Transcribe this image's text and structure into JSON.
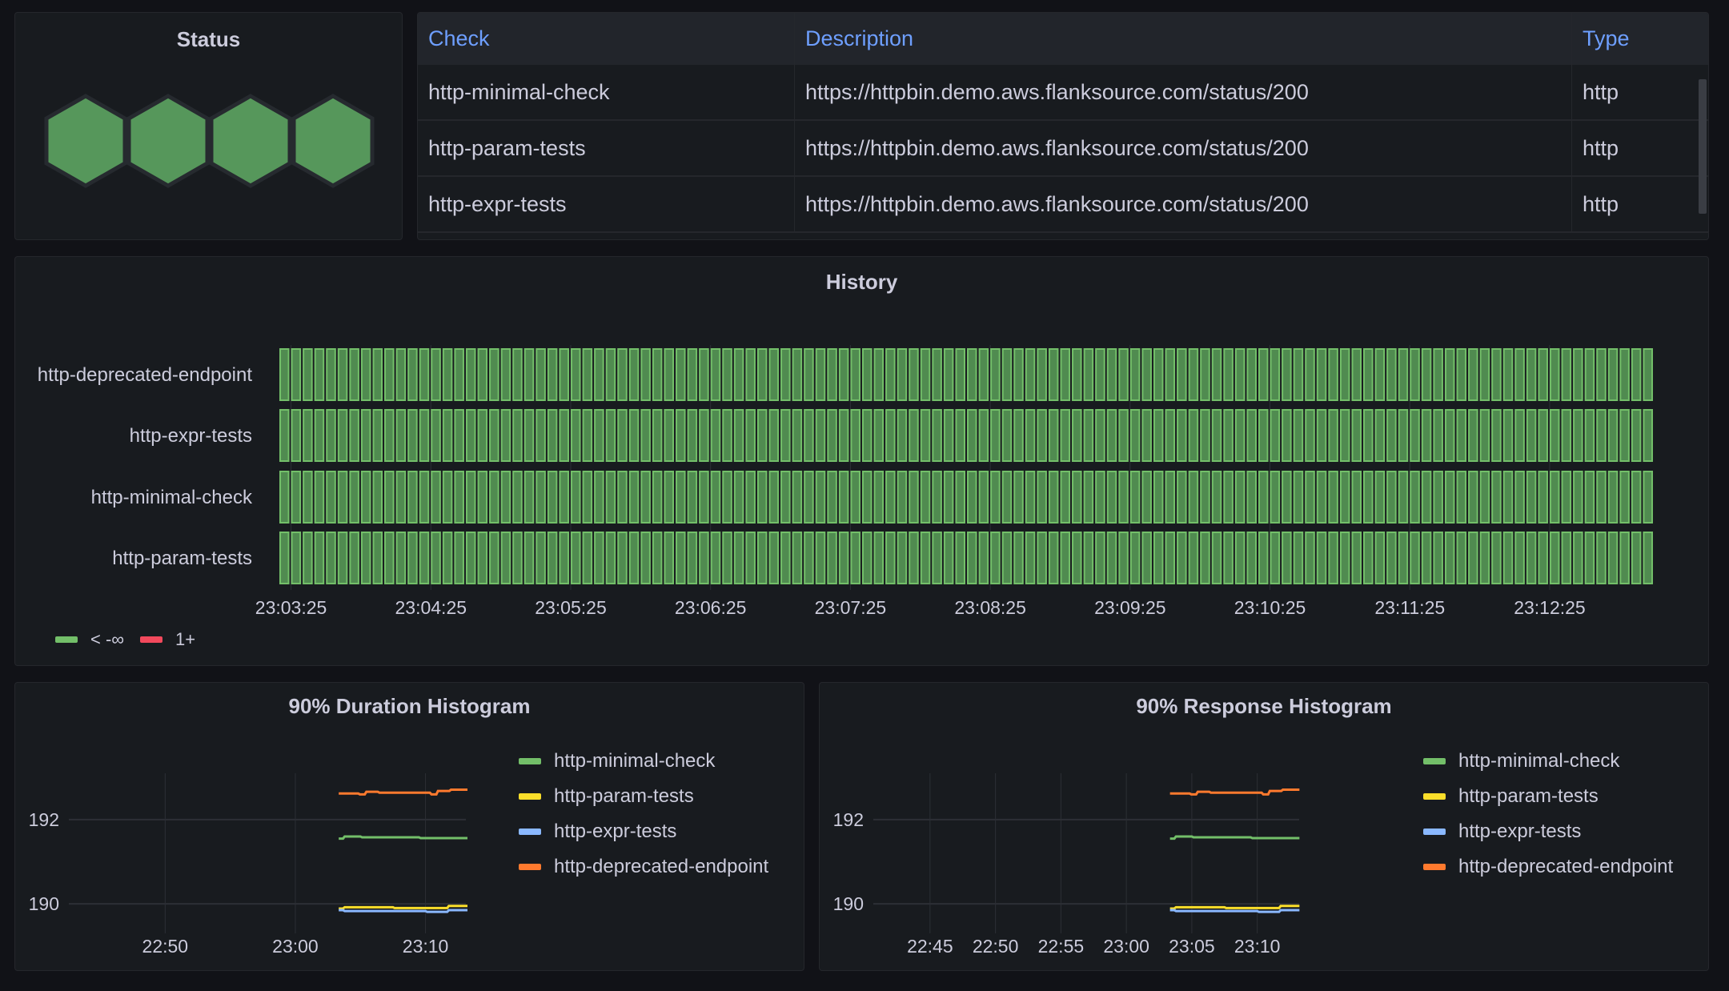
{
  "status": {
    "title": "Status",
    "hexagons": [
      {
        "state": "ok",
        "color": "#56975b"
      },
      {
        "state": "ok",
        "color": "#56975b"
      },
      {
        "state": "ok",
        "color": "#56975b"
      },
      {
        "state": "ok",
        "color": "#56975b"
      }
    ]
  },
  "table": {
    "columns": [
      "Check",
      "Description",
      "Type"
    ],
    "rows": [
      [
        "http-minimal-check",
        "https://httpbin.demo.aws.flanksource.com/status/200",
        "http"
      ],
      [
        "http-param-tests",
        "https://httpbin.demo.aws.flanksource.com/status/200",
        "http"
      ],
      [
        "http-expr-tests",
        "https://httpbin.demo.aws.flanksource.com/status/200",
        "http"
      ]
    ]
  },
  "history": {
    "title": "History",
    "rows": [
      "http-deprecated-endpoint",
      "http-expr-tests",
      "http-minimal-check",
      "http-param-tests"
    ],
    "start": "23:03:20",
    "interval_seconds": 5,
    "buckets_per_row": 118,
    "ticks": [
      "23:03:25",
      "23:04:25",
      "23:05:25",
      "23:06:25",
      "23:07:25",
      "23:08:25",
      "23:09:25",
      "23:10:25",
      "23:11:25",
      "23:12:25"
    ],
    "legend": [
      {
        "label": "< -∞",
        "color": "#73bf69"
      },
      {
        "label": "1+",
        "color": "#f2495c"
      }
    ],
    "ok_fill": "#508b50",
    "ok_stroke": "#73bf69"
  },
  "chart_data": [
    {
      "type": "line",
      "title": "90% Duration Histogram",
      "xlim": [
        "22:42:36",
        "23:13:06"
      ],
      "ylim": [
        189.3,
        193.1
      ],
      "xticks": [
        "22:50",
        "23:00",
        "23:10"
      ],
      "yticks": [
        190,
        192
      ],
      "grid": true,
      "legend": "right",
      "series": [
        {
          "name": "http-minimal-check",
          "color": "#73bf69",
          "points": [
            [
              "23:03:20",
              191.55
            ],
            [
              "23:03:40",
              191.6
            ],
            [
              "23:05:00",
              191.58
            ],
            [
              "23:09:30",
              191.56
            ],
            [
              "23:13:06",
              191.56
            ]
          ]
        },
        {
          "name": "http-param-tests",
          "color": "#fade2a",
          "points": [
            [
              "23:03:20",
              189.89
            ],
            [
              "23:03:40",
              189.92
            ],
            [
              "23:07:30",
              189.9
            ],
            [
              "23:11:40",
              189.95
            ],
            [
              "23:13:06",
              189.95
            ]
          ]
        },
        {
          "name": "http-expr-tests",
          "color": "#8ab8ff",
          "points": [
            [
              "23:03:20",
              189.85
            ],
            [
              "23:03:40",
              189.83
            ],
            [
              "23:10:00",
              189.81
            ],
            [
              "23:11:40",
              189.85
            ],
            [
              "23:13:06",
              189.85
            ]
          ]
        },
        {
          "name": "http-deprecated-endpoint",
          "color": "#ff7a2e",
          "points": [
            [
              "23:03:20",
              192.62
            ],
            [
              "23:04:50",
              192.6
            ],
            [
              "23:05:20",
              192.66
            ],
            [
              "23:06:20",
              192.64
            ],
            [
              "23:10:20",
              192.6
            ],
            [
              "23:10:50",
              192.68
            ],
            [
              "23:11:50",
              192.71
            ],
            [
              "23:13:06",
              192.71
            ]
          ]
        }
      ]
    },
    {
      "type": "line",
      "title": "90% Response Histogram",
      "xlim": [
        "22:40:40",
        "23:13:12"
      ],
      "ylim": [
        189.3,
        193.1
      ],
      "xticks": [
        "22:45",
        "22:50",
        "22:55",
        "23:00",
        "23:05",
        "23:10"
      ],
      "yticks": [
        190,
        192
      ],
      "grid": true,
      "legend": "right",
      "series": [
        {
          "name": "http-minimal-check",
          "color": "#73bf69",
          "points": [
            [
              "23:03:20",
              191.55
            ],
            [
              "23:03:40",
              191.6
            ],
            [
              "23:05:00",
              191.58
            ],
            [
              "23:09:30",
              191.56
            ],
            [
              "23:13:06",
              191.56
            ]
          ]
        },
        {
          "name": "http-param-tests",
          "color": "#fade2a",
          "points": [
            [
              "23:03:20",
              189.89
            ],
            [
              "23:03:40",
              189.92
            ],
            [
              "23:07:30",
              189.9
            ],
            [
              "23:11:40",
              189.95
            ],
            [
              "23:13:06",
              189.95
            ]
          ]
        },
        {
          "name": "http-expr-tests",
          "color": "#8ab8ff",
          "points": [
            [
              "23:03:20",
              189.85
            ],
            [
              "23:03:40",
              189.83
            ],
            [
              "23:10:00",
              189.81
            ],
            [
              "23:11:40",
              189.85
            ],
            [
              "23:13:06",
              189.85
            ]
          ]
        },
        {
          "name": "http-deprecated-endpoint",
          "color": "#ff7a2e",
          "points": [
            [
              "23:03:20",
              192.62
            ],
            [
              "23:04:50",
              192.6
            ],
            [
              "23:05:20",
              192.66
            ],
            [
              "23:06:20",
              192.64
            ],
            [
              "23:10:20",
              192.6
            ],
            [
              "23:10:50",
              192.68
            ],
            [
              "23:11:50",
              192.71
            ],
            [
              "23:13:06",
              192.71
            ]
          ]
        }
      ]
    }
  ]
}
